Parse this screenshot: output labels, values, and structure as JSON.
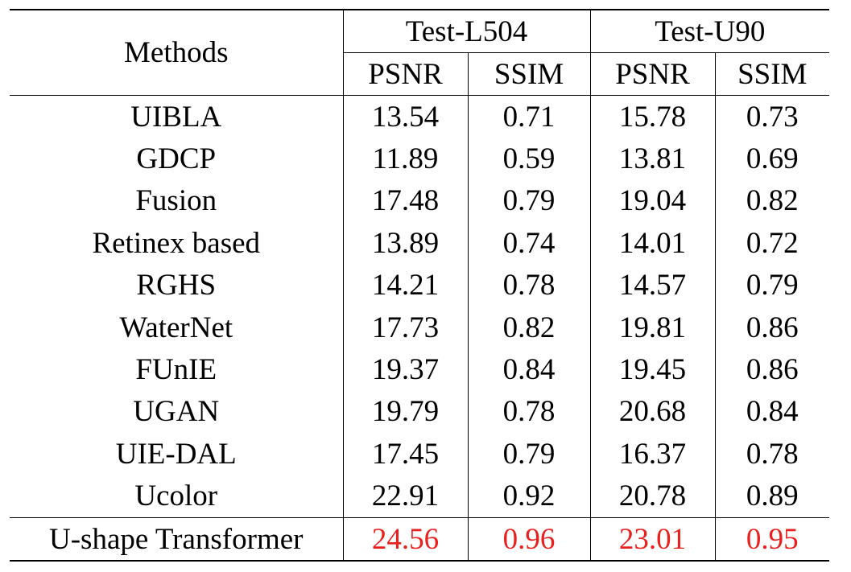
{
  "table": {
    "header": {
      "methods": "Methods",
      "groups": [
        {
          "label": "Test-L504",
          "psnr": "PSNR",
          "ssim": "SSIM"
        },
        {
          "label": "Test-U90",
          "psnr": "PSNR",
          "ssim": "SSIM"
        }
      ]
    },
    "rows": [
      {
        "method": "UIBLA",
        "l504_psnr": "13.54",
        "l504_ssim": "0.71",
        "u90_psnr": "15.78",
        "u90_ssim": "0.73"
      },
      {
        "method": "GDCP",
        "l504_psnr": "11.89",
        "l504_ssim": "0.59",
        "u90_psnr": "13.81",
        "u90_ssim": "0.69"
      },
      {
        "method": "Fusion",
        "l504_psnr": "17.48",
        "l504_ssim": "0.79",
        "u90_psnr": "19.04",
        "u90_ssim": "0.82"
      },
      {
        "method": "Retinex based",
        "l504_psnr": "13.89",
        "l504_ssim": "0.74",
        "u90_psnr": "14.01",
        "u90_ssim": "0.72"
      },
      {
        "method": "RGHS",
        "l504_psnr": "14.21",
        "l504_ssim": "0.78",
        "u90_psnr": "14.57",
        "u90_ssim": "0.79"
      },
      {
        "method": "WaterNet",
        "l504_psnr": "17.73",
        "l504_ssim": "0.82",
        "u90_psnr": "19.81",
        "u90_ssim": "0.86"
      },
      {
        "method": "FUnIE",
        "l504_psnr": "19.37",
        "l504_ssim": "0.84",
        "u90_psnr": "19.45",
        "u90_ssim": "0.86"
      },
      {
        "method": "UGAN",
        "l504_psnr": "19.79",
        "l504_ssim": "0.78",
        "u90_psnr": "20.68",
        "u90_ssim": "0.84"
      },
      {
        "method": "UIE-DAL",
        "l504_psnr": "17.45",
        "l504_ssim": "0.79",
        "u90_psnr": "16.37",
        "u90_ssim": "0.78"
      },
      {
        "method": "Ucolor",
        "l504_psnr": "22.91",
        "l504_ssim": "0.92",
        "u90_psnr": "20.78",
        "u90_ssim": "0.89"
      },
      {
        "method": "U-shape Transformer",
        "l504_psnr": "24.56",
        "l504_ssim": "0.96",
        "u90_psnr": "23.01",
        "u90_ssim": "0.95"
      }
    ],
    "best_color": "#e8201e"
  }
}
